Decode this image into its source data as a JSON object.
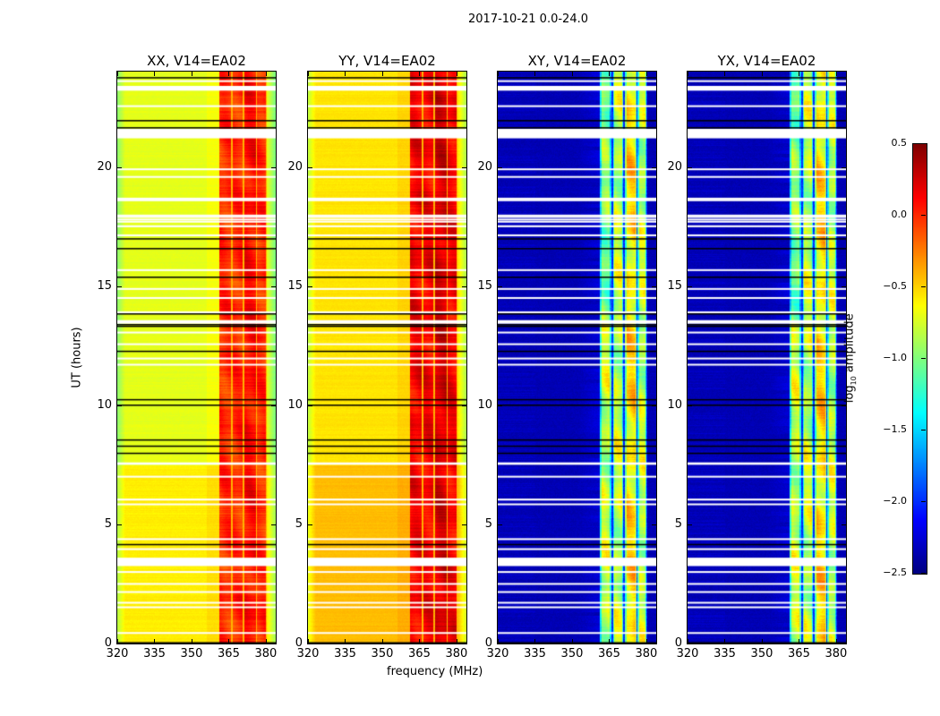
{
  "chart_data": {
    "type": "heatmap",
    "title": "2017-10-21 0.0-24.0",
    "xlabel": "frequency (MHz)",
    "ylabel": "UT (hours)",
    "xlim": [
      320,
      384
    ],
    "ylim": [
      0,
      24
    ],
    "xticks": [
      "320",
      "335",
      "350",
      "365",
      "380"
    ],
    "xtick_values": [
      320,
      335,
      350,
      365,
      380
    ],
    "yticks": [
      "0",
      "5",
      "10",
      "15",
      "20"
    ],
    "ytick_values": [
      0,
      5,
      10,
      15,
      20
    ],
    "colorbar": {
      "label": "log10 amplitude",
      "label_main": "log",
      "label_sub": "10",
      "label_rest": " amplitude",
      "range": [
        -2.5,
        0.5
      ],
      "ticks": [
        "0.5",
        "0.0",
        "−0.5",
        "−1.0",
        "−1.5",
        "−2.0",
        "−2.5"
      ],
      "tick_values": [
        0.5,
        0.0,
        -0.5,
        -1.0,
        -1.5,
        -2.0,
        -2.5
      ],
      "colormap": "jet"
    },
    "sub_bands_mhz": [
      [
        361.2,
        365.6
      ],
      [
        366.3,
        370.6
      ],
      [
        371.3,
        376.0
      ],
      [
        376.4,
        380.0
      ]
    ],
    "panels": [
      {
        "title": "XX, V14=EA02",
        "background_log_amp": -0.7,
        "band_log_amp": 0.0
      },
      {
        "title": "YY, V14=EA02",
        "background_log_amp": -0.6,
        "band_log_amp": 0.15
      },
      {
        "title": "XY, V14=EA02",
        "background_log_amp": -2.35,
        "band_log_amp": -0.8
      },
      {
        "title": "YX, V14=EA02",
        "background_log_amp": -2.35,
        "band_log_amp": -0.8
      }
    ],
    "flagged_hours": [
      [
        23.2,
        23.4
      ],
      [
        21.2,
        21.6
      ],
      [
        17.47,
        17.55
      ],
      [
        13.42,
        13.57
      ],
      [
        7.5,
        7.6
      ],
      [
        6.0,
        6.08
      ],
      [
        3.25,
        3.6
      ]
    ],
    "flag_lines_white_hours": [
      23.6,
      22.55,
      19.9,
      19.58,
      18.67,
      18.6,
      17.96,
      17.9,
      17.79,
      17.7,
      17.13,
      15.67,
      14.88,
      14.5,
      13.9,
      13.05,
      12.56,
      11.96,
      11.7,
      7.0,
      5.84,
      4.38,
      3.96,
      3.0,
      2.5,
      2.16,
      1.71,
      1.52,
      0.44
    ],
    "flag_lines_black_hours": [
      23.74,
      21.94,
      21.64,
      16.98,
      16.57,
      15.37,
      13.83,
      13.38,
      13.31,
      12.26,
      10.23,
      10.0,
      8.54,
      8.28,
      7.98,
      4.15,
      0.03
    ]
  }
}
